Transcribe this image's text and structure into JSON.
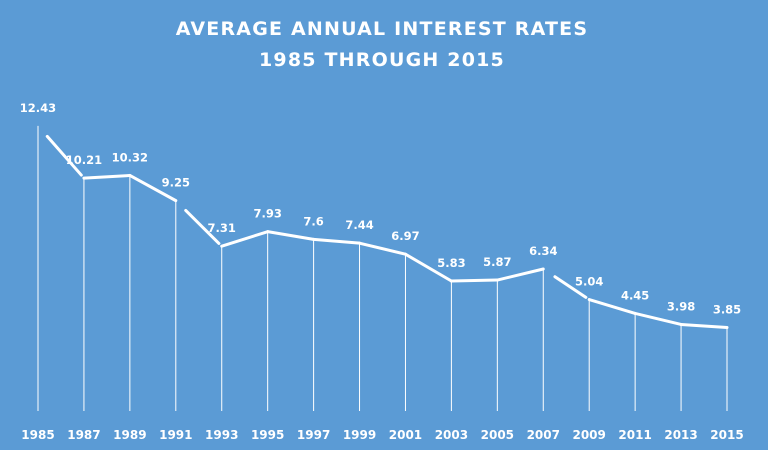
{
  "colors": {
    "background": "#5b9bd5",
    "line": "#ffffff",
    "text": "#ffffff"
  },
  "chart_data": {
    "type": "line",
    "title_line1": "AVERAGE ANNUAL INTEREST RATES",
    "title_line2": "1985 THROUGH 2015",
    "xlabel": "",
    "ylabel": "",
    "grid": false,
    "legend": "none",
    "categories": [
      "1985",
      "1987",
      "1989",
      "1991",
      "1993",
      "1995",
      "1997",
      "1999",
      "2001",
      "2003",
      "2005",
      "2007",
      "2009",
      "2011",
      "2013",
      "2015"
    ],
    "series": [
      {
        "values": [
          12.43,
          10.21,
          10.32,
          9.25,
          7.31,
          7.93,
          7.6,
          7.44,
          6.97,
          5.83,
          5.87,
          6.34,
          5.04,
          4.45,
          3.98,
          3.85
        ]
      }
    ],
    "data_labels": [
      "12.43",
      "10.21",
      "10.32",
      "9.25",
      "7.31",
      "7.93",
      "7.6",
      "7.44",
      "6.97",
      "5.83",
      "5.87",
      "6.34",
      "5.04",
      "4.45",
      "3.98",
      "3.85"
    ]
  }
}
